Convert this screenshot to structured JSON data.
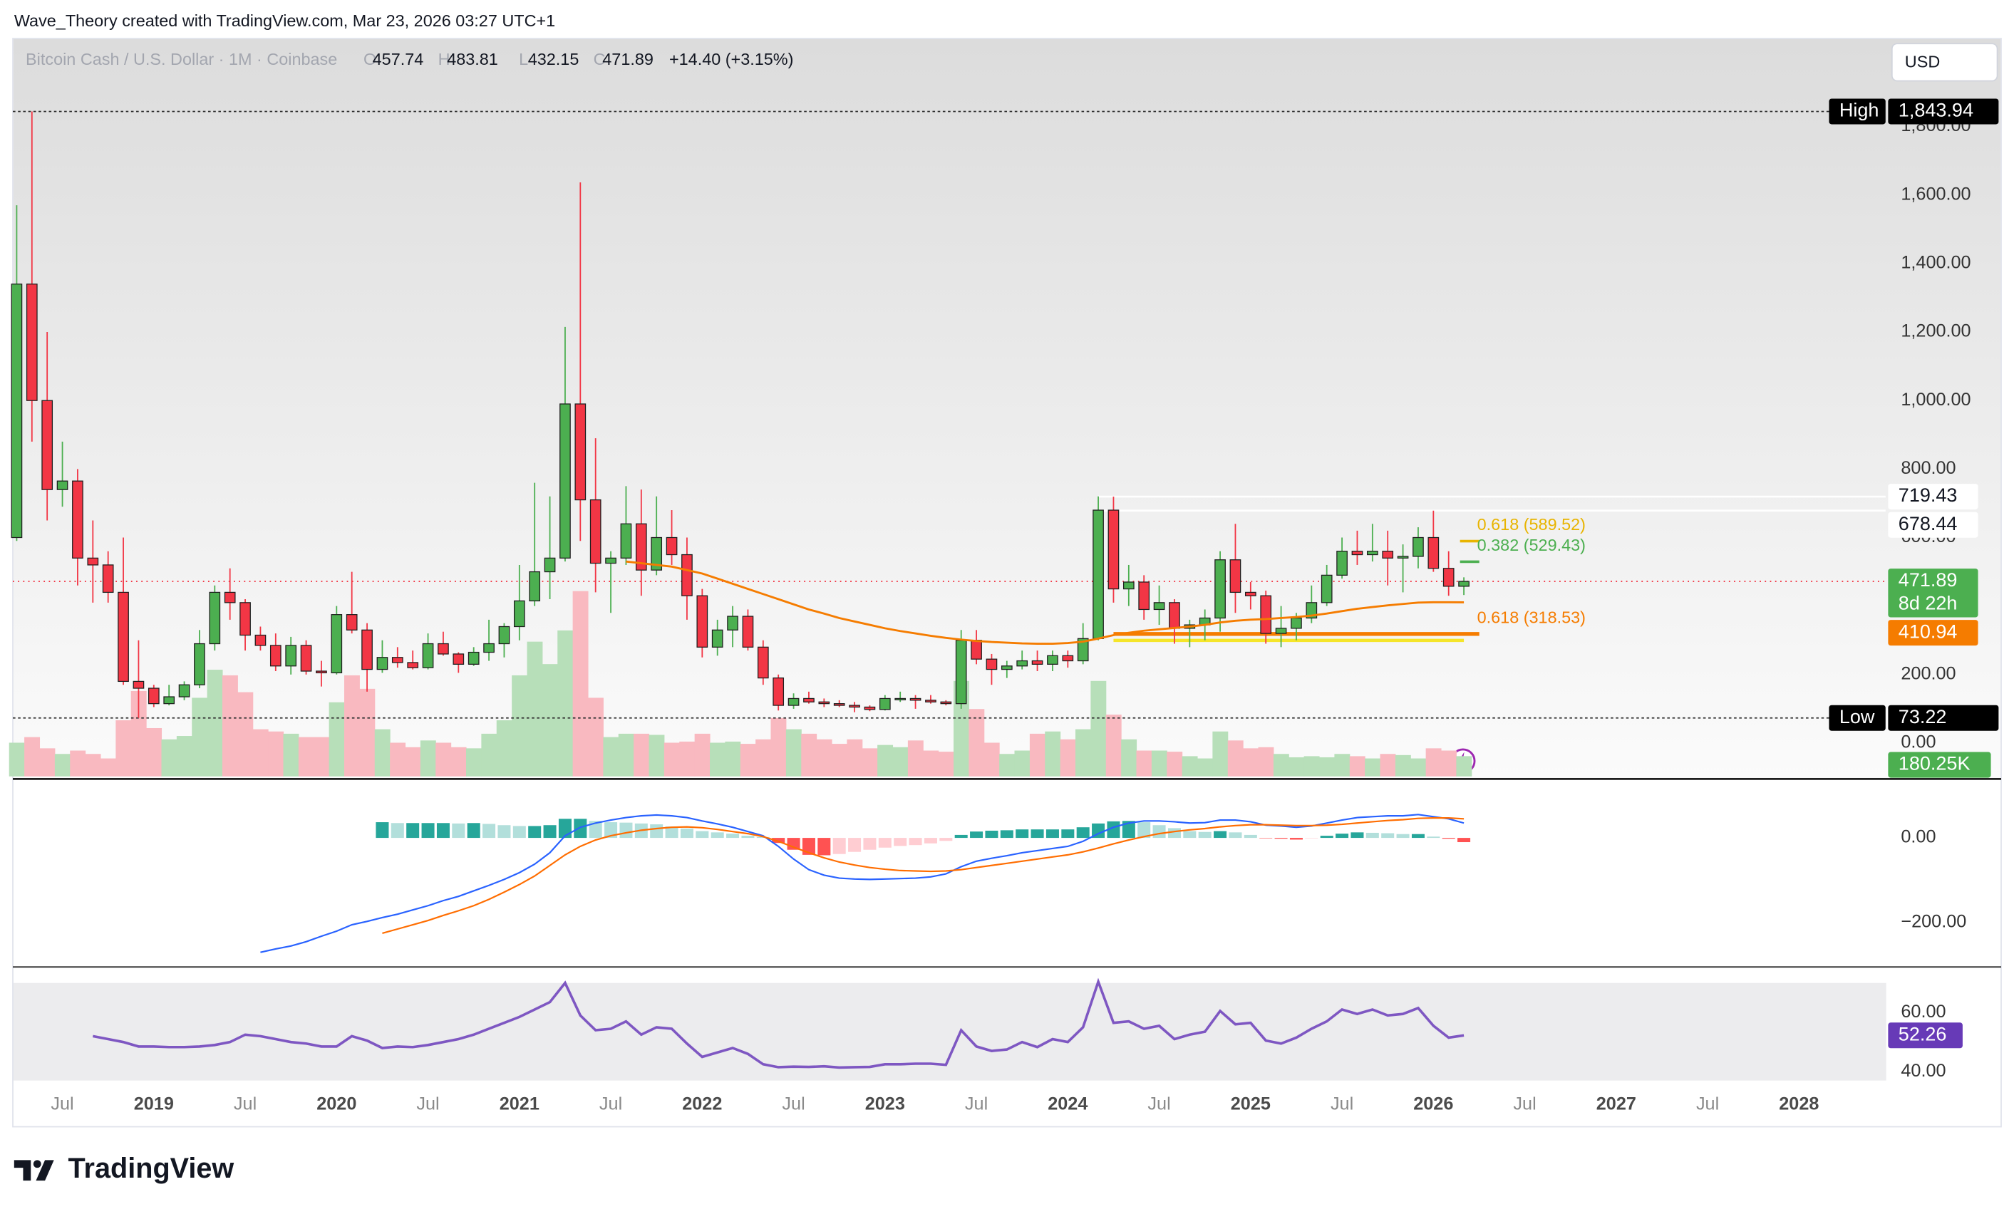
{
  "header": {
    "attribution": "Wave_Theory created with TradingView.com, Mar 23, 2026 03:27 UTC+1",
    "currency": "USD",
    "logo": "TradingView"
  },
  "chart_data": {
    "type": "candlestick",
    "legend": {
      "symbol": "Bitcoin Cash / U.S. Dollar · 1M · Coinbase",
      "fields": [
        "O",
        "H",
        "L",
        "C"
      ],
      "change": "+14.40 (+3.15%)"
    },
    "open": [
      600,
      1340,
      1000,
      740,
      765,
      540,
      520,
      440,
      180,
      160,
      115,
      135,
      170,
      290,
      440,
      410,
      315,
      285,
      225,
      285,
      210,
      205,
      375,
      330,
      215,
      250,
      235,
      220,
      290,
      260,
      230,
      265,
      290,
      340,
      415,
      500,
      540,
      990,
      710,
      525,
      540,
      640,
      505,
      600,
      550,
      430,
      280,
      330,
      370,
      280,
      190,
      110,
      130,
      120,
      115,
      110,
      105,
      98,
      130,
      130,
      125,
      120,
      115,
      300,
      245,
      215,
      225,
      240,
      230,
      255,
      240,
      305,
      680,
      450,
      470,
      390,
      410,
      335,
      345,
      365,
      535,
      440,
      430,
      320,
      335,
      365,
      410,
      490,
      560,
      550,
      560,
      540,
      545,
      600,
      510,
      457.74
    ],
    "high": [
      1570,
      1843.94,
      1200,
      880,
      800,
      650,
      560,
      600,
      300,
      170,
      170,
      180,
      330,
      460,
      510,
      420,
      340,
      320,
      310,
      300,
      240,
      400,
      500,
      350,
      300,
      280,
      270,
      320,
      325,
      265,
      280,
      360,
      350,
      520,
      760,
      720,
      1215,
      1637,
      890,
      560,
      750,
      740,
      720,
      680,
      600,
      450,
      360,
      400,
      390,
      300,
      200,
      145,
      150,
      130,
      125,
      120,
      110,
      140,
      150,
      140,
      140,
      125,
      330,
      330,
      260,
      240,
      270,
      270,
      270,
      270,
      350,
      720,
      719.43,
      520,
      490,
      460,
      420,
      360,
      390,
      560,
      640,
      470,
      445,
      400,
      380,
      460,
      520,
      600,
      620,
      640,
      620,
      580,
      630,
      678.44,
      560,
      483.81
    ],
    "low": [
      590,
      880,
      650,
      690,
      460,
      410,
      410,
      170,
      73.22,
      105,
      110,
      125,
      160,
      270,
      360,
      270,
      270,
      210,
      200,
      200,
      165,
      200,
      320,
      150,
      205,
      220,
      215,
      215,
      255,
      205,
      225,
      240,
      250,
      300,
      400,
      420,
      530,
      590,
      440,
      380,
      520,
      430,
      490,
      520,
      360,
      250,
      255,
      280,
      270,
      170,
      95,
      100,
      115,
      105,
      105,
      90,
      93,
      95,
      120,
      100,
      115,
      110,
      100,
      230,
      170,
      190,
      215,
      210,
      210,
      220,
      230,
      300,
      410,
      400,
      360,
      345,
      290,
      280,
      300,
      325,
      380,
      390,
      290,
      280,
      300,
      350,
      400,
      480,
      520,
      530,
      460,
      440,
      510,
      500,
      430,
      432.15
    ],
    "close": [
      1340,
      1000,
      740,
      765,
      540,
      520,
      440,
      180,
      160,
      115,
      135,
      170,
      290,
      440,
      410,
      315,
      285,
      225,
      285,
      210,
      205,
      375,
      330,
      215,
      250,
      235,
      220,
      290,
      260,
      230,
      265,
      290,
      340,
      415,
      500,
      540,
      990,
      710,
      525,
      540,
      640,
      505,
      600,
      550,
      430,
      280,
      330,
      370,
      280,
      190,
      110,
      130,
      120,
      115,
      110,
      105,
      98,
      130,
      130,
      125,
      120,
      115,
      300,
      245,
      215,
      225,
      240,
      230,
      255,
      240,
      305,
      680,
      450,
      470,
      390,
      410,
      335,
      345,
      365,
      535,
      440,
      430,
      320,
      335,
      365,
      410,
      490,
      560,
      550,
      560,
      540,
      545,
      600,
      510,
      457.74,
      471.89
    ],
    "colors": {
      "up": "#4caf50",
      "down": "#f23645"
    },
    "ylim": [
      -97.4,
      2057
    ],
    "yticks": [
      {
        "value": 0,
        "label": "0.00"
      },
      {
        "value": 200,
        "label": "200.00"
      },
      {
        "value": 400,
        "label": "400.00"
      },
      {
        "value": 600,
        "label": "600.00"
      },
      {
        "value": 800,
        "label": "800.00"
      },
      {
        "value": 1000,
        "label": "1,000.00"
      },
      {
        "value": 1200,
        "label": "1,200.00"
      },
      {
        "value": 1400,
        "label": "1,400.00"
      },
      {
        "value": 1600,
        "label": "1,600.00"
      },
      {
        "value": 1800,
        "label": "1,800.00"
      }
    ],
    "grid": false,
    "high_marker": {
      "label": "High",
      "value": 1843.94,
      "value_label": "1,843.94"
    },
    "low_marker": {
      "label": "Low",
      "value": 73.22
    },
    "levels": [
      719.43,
      678.44
    ],
    "countdown": "8d 22h",
    "fib": [
      {
        "label": "0.618 (589.52)",
        "value": 589.52,
        "color": "#e8b400"
      },
      {
        "label": "0.382 (529.43)",
        "value": 529.43,
        "color": "#4caf50"
      },
      {
        "label": "0.618 (318.53)",
        "value": 318.53,
        "color": "#f57c00"
      }
    ],
    "ema": {
      "color": "#f57c00",
      "values": [
        null,
        null,
        null,
        null,
        null,
        null,
        null,
        null,
        null,
        null,
        null,
        null,
        null,
        null,
        null,
        null,
        null,
        null,
        null,
        null,
        null,
        null,
        null,
        null,
        null,
        null,
        null,
        null,
        null,
        null,
        null,
        null,
        null,
        null,
        null,
        null,
        null,
        null,
        null,
        null,
        530,
        525,
        520,
        515,
        505,
        495,
        480,
        465,
        450,
        435,
        420,
        405,
        390,
        378,
        365,
        355,
        345,
        335,
        327,
        320,
        313,
        307,
        302,
        298,
        295,
        293,
        291,
        290,
        290,
        292,
        296,
        305,
        315,
        322,
        328,
        332,
        336,
        340,
        345,
        352,
        357,
        360,
        362,
        365,
        368,
        372,
        378,
        385,
        392,
        397,
        402,
        406,
        410,
        411,
        411,
        410.94
      ]
    },
    "volume": {
      "values": [
        300000,
        350000,
        250000,
        200000,
        230000,
        200000,
        160000,
        500000,
        760000,
        430000,
        330000,
        360000,
        700000,
        950000,
        900000,
        750000,
        420000,
        400000,
        380000,
        350000,
        350000,
        660000,
        900000,
        780000,
        420000,
        300000,
        260000,
        320000,
        300000,
        260000,
        250000,
        380000,
        500000,
        900000,
        1200000,
        1000000,
        1300000,
        1650000,
        700000,
        350000,
        380000,
        380000,
        370000,
        300000,
        310000,
        380000,
        300000,
        310000,
        290000,
        330000,
        520000,
        420000,
        380000,
        330000,
        290000,
        330000,
        250000,
        280000,
        260000,
        320000,
        230000,
        220000,
        850000,
        600000,
        300000,
        200000,
        230000,
        380000,
        400000,
        330000,
        420000,
        850000,
        550000,
        330000,
        230000,
        230000,
        220000,
        180000,
        160000,
        400000,
        320000,
        250000,
        260000,
        200000,
        170000,
        180000,
        170000,
        200000,
        180000,
        160000,
        200000,
        190000,
        160000,
        250000,
        230000,
        180250
      ],
      "last_label": "180.25K",
      "up_color": "#b7dfb9",
      "down_color": "#f9b9c0"
    },
    "macd": {
      "ylim": [
        -300,
        136
      ],
      "yticks": [
        {
          "value": 0,
          "label": "0.00"
        },
        {
          "value": -200,
          "label": "−200.00"
        }
      ],
      "macd": {
        "color": "#2962ff",
        "values": [
          null,
          null,
          null,
          null,
          null,
          null,
          null,
          null,
          null,
          null,
          null,
          null,
          null,
          null,
          null,
          null,
          -270,
          -262,
          -255,
          -245,
          -232,
          -220,
          -205,
          -197,
          -188,
          -180,
          -170,
          -160,
          -148,
          -138,
          -125,
          -112,
          -98,
          -82,
          -62,
          -35,
          5,
          25,
          35,
          42,
          48,
          52,
          54,
          52,
          48,
          40,
          33,
          25,
          15,
          5,
          -20,
          -50,
          -75,
          -88,
          -95,
          -97,
          -98,
          -97,
          -96,
          -95,
          -92,
          -85,
          -68,
          -55,
          -48,
          -42,
          -35,
          -30,
          -25,
          -20,
          -8,
          10,
          25,
          35,
          40,
          40,
          38,
          35,
          36,
          42,
          42,
          38,
          30,
          28,
          25,
          28,
          35,
          42,
          48,
          50,
          52,
          52,
          55,
          50,
          45,
          35
        ]
      },
      "signal": {
        "color": "#ff6d00",
        "values": [
          null,
          null,
          null,
          null,
          null,
          null,
          null,
          null,
          null,
          null,
          null,
          null,
          null,
          null,
          null,
          null,
          null,
          null,
          null,
          null,
          null,
          null,
          null,
          null,
          -225,
          -215,
          -205,
          -195,
          -183,
          -172,
          -160,
          -145,
          -128,
          -110,
          -90,
          -65,
          -40,
          -20,
          -5,
          5,
          12,
          18,
          22,
          25,
          26,
          24,
          20,
          15,
          10,
          3,
          -8,
          -22,
          -35,
          -47,
          -57,
          -64,
          -70,
          -74,
          -77,
          -78,
          -79,
          -78,
          -75,
          -70,
          -65,
          -60,
          -55,
          -50,
          -45,
          -40,
          -33,
          -24,
          -14,
          -5,
          3,
          10,
          15,
          19,
          22,
          26,
          29,
          31,
          31,
          30,
          29,
          29,
          30,
          32,
          35,
          38,
          41,
          43,
          46,
          47,
          47,
          45
        ]
      },
      "histogram": [
        null,
        null,
        null,
        null,
        null,
        null,
        null,
        null,
        null,
        null,
        null,
        null,
        null,
        null,
        null,
        null,
        null,
        null,
        null,
        null,
        null,
        null,
        null,
        null,
        37,
        35,
        35,
        35,
        35,
        34,
        35,
        33,
        30,
        28,
        28,
        30,
        45,
        45,
        40,
        37,
        36,
        34,
        32,
        27,
        22,
        16,
        13,
        10,
        5,
        2,
        -12,
        -28,
        -40,
        -41,
        -38,
        -33,
        -28,
        -23,
        -19,
        -17,
        -13,
        -7,
        7,
        15,
        17,
        18,
        20,
        20,
        20,
        20,
        25,
        34,
        39,
        40,
        37,
        30,
        23,
        16,
        14,
        16,
        13,
        7,
        -1,
        -2,
        -4,
        -1,
        5,
        10,
        13,
        12,
        11,
        9,
        9,
        3,
        -2,
        -10
      ],
      "histogram_colors": [
        "#26a69a",
        "#b2dfdb",
        "#ff5252",
        "#ffcdd2"
      ]
    },
    "rsi": {
      "ylim": [
        37,
        74.3
      ],
      "yticks": [
        {
          "value": 60,
          "label": "60.00"
        },
        {
          "value": 40,
          "label": "40.00"
        }
      ],
      "color": "#7e57c2",
      "values": [
        null,
        null,
        null,
        null,
        null,
        52,
        51,
        50,
        48.5,
        48.5,
        48.3,
        48.3,
        48.5,
        49,
        50,
        52.5,
        52,
        51,
        50,
        49.5,
        48.5,
        48.5,
        52,
        50.5,
        48,
        48.5,
        48.3,
        49,
        50,
        51,
        52.5,
        54.5,
        56.5,
        58.5,
        61,
        63.5,
        70,
        59,
        54,
        54.5,
        57,
        52.5,
        55,
        54.5,
        49.5,
        45,
        46.5,
        48,
        46,
        42.5,
        41.5,
        41.7,
        41.6,
        41.8,
        41.4,
        41.5,
        41.6,
        42.5,
        42.5,
        42.7,
        42.7,
        42.3,
        54,
        48.5,
        47,
        47.5,
        50,
        48.3,
        51,
        50,
        55,
        70.4,
        56.5,
        57,
        54.5,
        55.5,
        51,
        52.5,
        53.5,
        60.5,
        56,
        56.5,
        50.5,
        49.5,
        51.5,
        54.5,
        57,
        61,
        59.5,
        61,
        59,
        59.5,
        61.5,
        55.5,
        51.5,
        52.26
      ]
    },
    "time_labels": [
      "Jul",
      "2019",
      "Jul",
      "2020",
      "Jul",
      "2021",
      "Jul",
      "2022",
      "Jul",
      "2023",
      "Jul",
      "2024",
      "Jul",
      "2025",
      "Jul",
      "2026",
      "Jul",
      "2027",
      "Jul",
      "2028"
    ]
  }
}
